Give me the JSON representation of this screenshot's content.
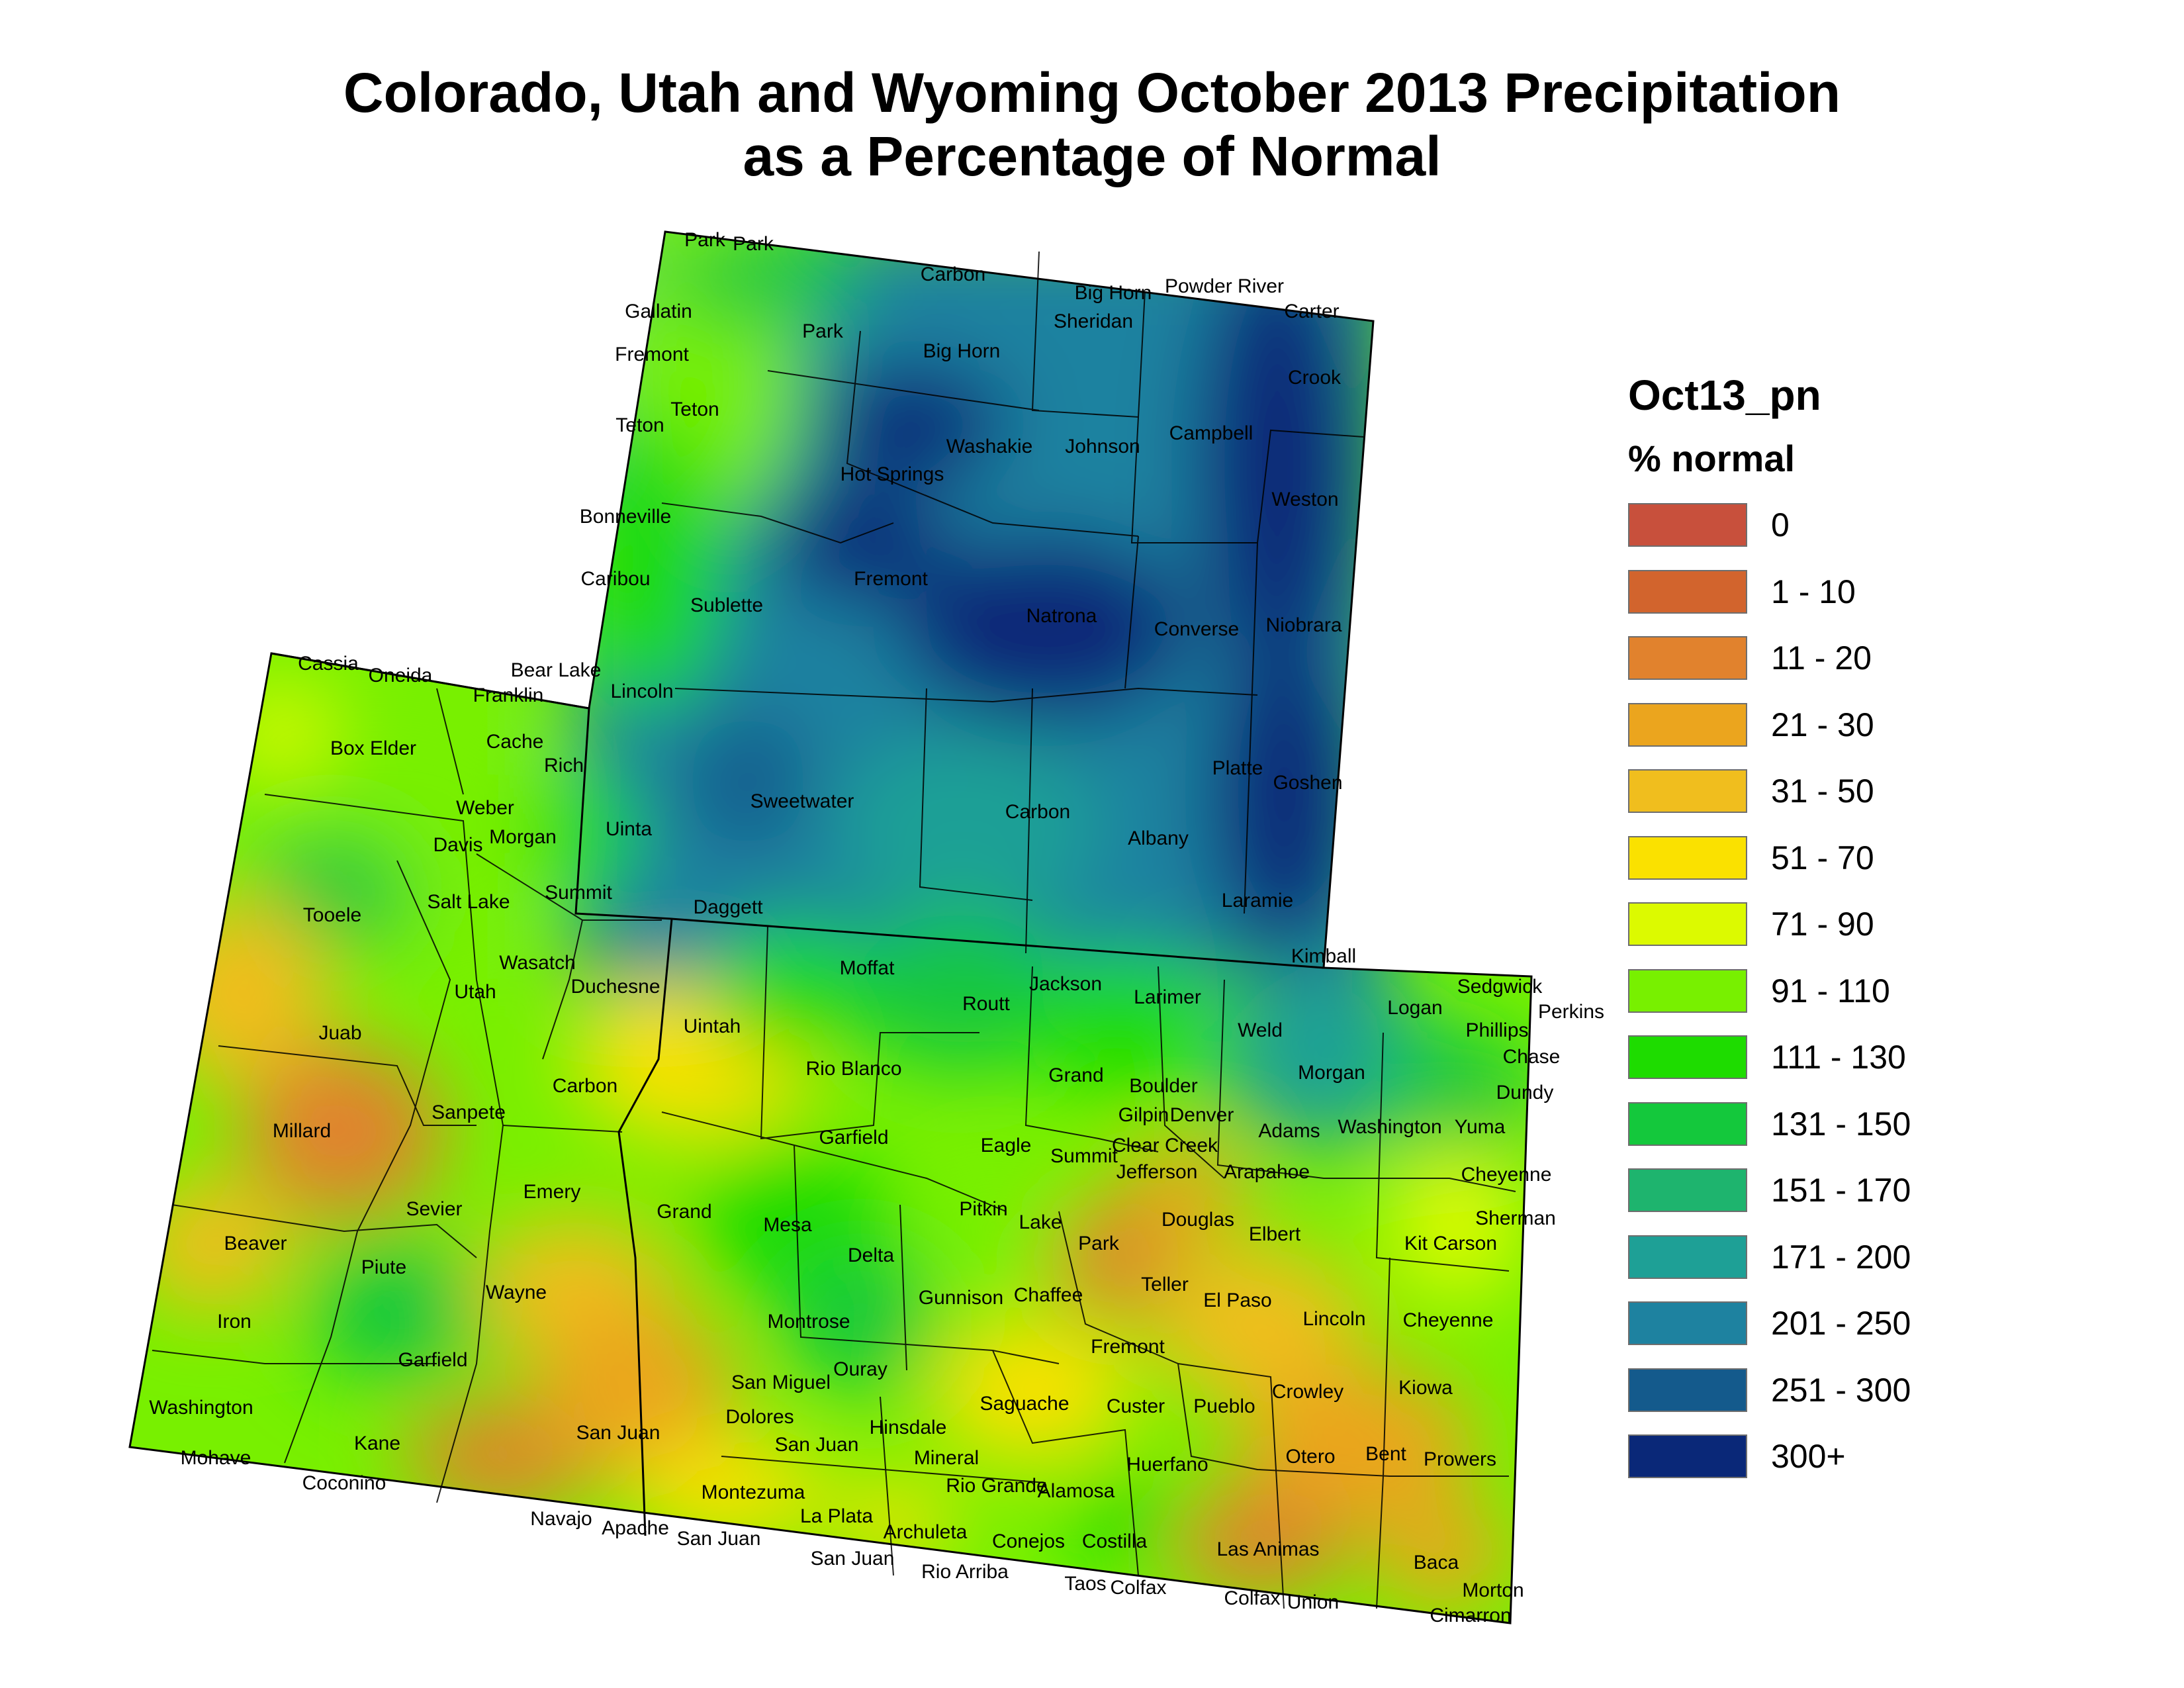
{
  "title": {
    "line1": "Colorado, Utah and Wyoming October 2013 Precipitation",
    "line2": "as a Percentage of Normal"
  },
  "legend": {
    "title": "Oct13_pn",
    "subtitle": "% normal",
    "classes": [
      {
        "label": "0",
        "color": "#c8503c"
      },
      {
        "label": "1 - 10",
        "color": "#d2642d"
      },
      {
        "label": "11 - 20",
        "color": "#e1822d"
      },
      {
        "label": "21 - 30",
        "color": "#eba51e"
      },
      {
        "label": "31 - 50",
        "color": "#f0be1e"
      },
      {
        "label": "51 - 70",
        "color": "#fae100"
      },
      {
        "label": "71 - 90",
        "color": "#dcfa00"
      },
      {
        "label": "91 - 110",
        "color": "#78f000"
      },
      {
        "label": "111 - 130",
        "color": "#1edc00"
      },
      {
        "label": "131 - 150",
        "color": "#14c83c"
      },
      {
        "label": "151 - 170",
        "color": "#1eb46e"
      },
      {
        "label": "171 - 200",
        "color": "#1ea096"
      },
      {
        "label": "201 - 250",
        "color": "#1e82a0"
      },
      {
        "label": "251 - 300",
        "color": "#145a8c"
      },
      {
        "label": "300+",
        "color": "#0a2878"
      }
    ]
  },
  "county_labels": [
    "Park",
    "Park",
    "Carbon",
    "Big Horn",
    "Powder River",
    "Carter",
    "Gallatin",
    "Fremont",
    "Park",
    "Big Horn",
    "Sheridan",
    "Crook",
    "Teton",
    "Teton",
    "Washakie",
    "Johnson",
    "Campbell",
    "Hot Springs",
    "Weston",
    "Bonneville",
    "Caribou",
    "Fremont",
    "Sublette",
    "Natrona",
    "Converse",
    "Niobrara",
    "Cassia",
    "Oneida",
    "Bear Lake",
    "Franklin",
    "Lincoln",
    "Box Elder",
    "Cache",
    "Rich",
    "Platte",
    "Goshen",
    "Weber",
    "Morgan",
    "Davis",
    "Uinta",
    "Sweetwater",
    "Carbon",
    "Albany",
    "Summit",
    "Tooele",
    "Salt Lake",
    "Daggett",
    "Laramie",
    "Kimball",
    "Wasatch",
    "Duchesne",
    "Moffat",
    "Jackson",
    "Larimer",
    "Logan",
    "Sedgwick",
    "Perkins",
    "Utah",
    "Uintah",
    "Routt",
    "Weld",
    "Phillips",
    "Chase",
    "Juab",
    "Carbon",
    "Rio Blanco",
    "Grand",
    "Morgan",
    "Dundy",
    "Boulder",
    "Sanpete",
    "Gilpin",
    "Denver",
    "Adams",
    "Washington",
    "Yuma",
    "Millard",
    "Garfield",
    "Eagle",
    "Summit",
    "Clear Creek",
    "Jefferson",
    "Arapahoe",
    "Cheyenne",
    "Emery",
    "Sevier",
    "Grand",
    "Mesa",
    "Pitkin",
    "Lake",
    "Douglas",
    "Sherman",
    "Elbert",
    "Park",
    "Kit Carson",
    "Beaver",
    "Delta",
    "Teller",
    "Piute",
    "Wayne",
    "Gunnison",
    "Chaffee",
    "El Paso",
    "Lincoln",
    "Cheyenne",
    "Iron",
    "Montrose",
    "Fremont",
    "Garfield",
    "Ouray",
    "Kiowa",
    "San Miguel",
    "Crowley",
    "Custer",
    "Pueblo",
    "Saguache",
    "Washington",
    "Dolores",
    "Hinsdale",
    "Kane",
    "San Juan",
    "San Juan",
    "Bent",
    "Otero",
    "Prowers",
    "Mohave",
    "Mineral",
    "Huerfano",
    "Coconino",
    "Rio Grande",
    "Alamosa",
    "Montezuma",
    "La Plata",
    "Navajo",
    "Archuleta",
    "Apache",
    "Conejos",
    "Costilla",
    "San Juan",
    "Las Animas",
    "Baca",
    "San Juan",
    "Rio Arriba",
    "Taos",
    "Colfax",
    "Colfax",
    "Union",
    "Morton",
    "Cimarron"
  ]
}
